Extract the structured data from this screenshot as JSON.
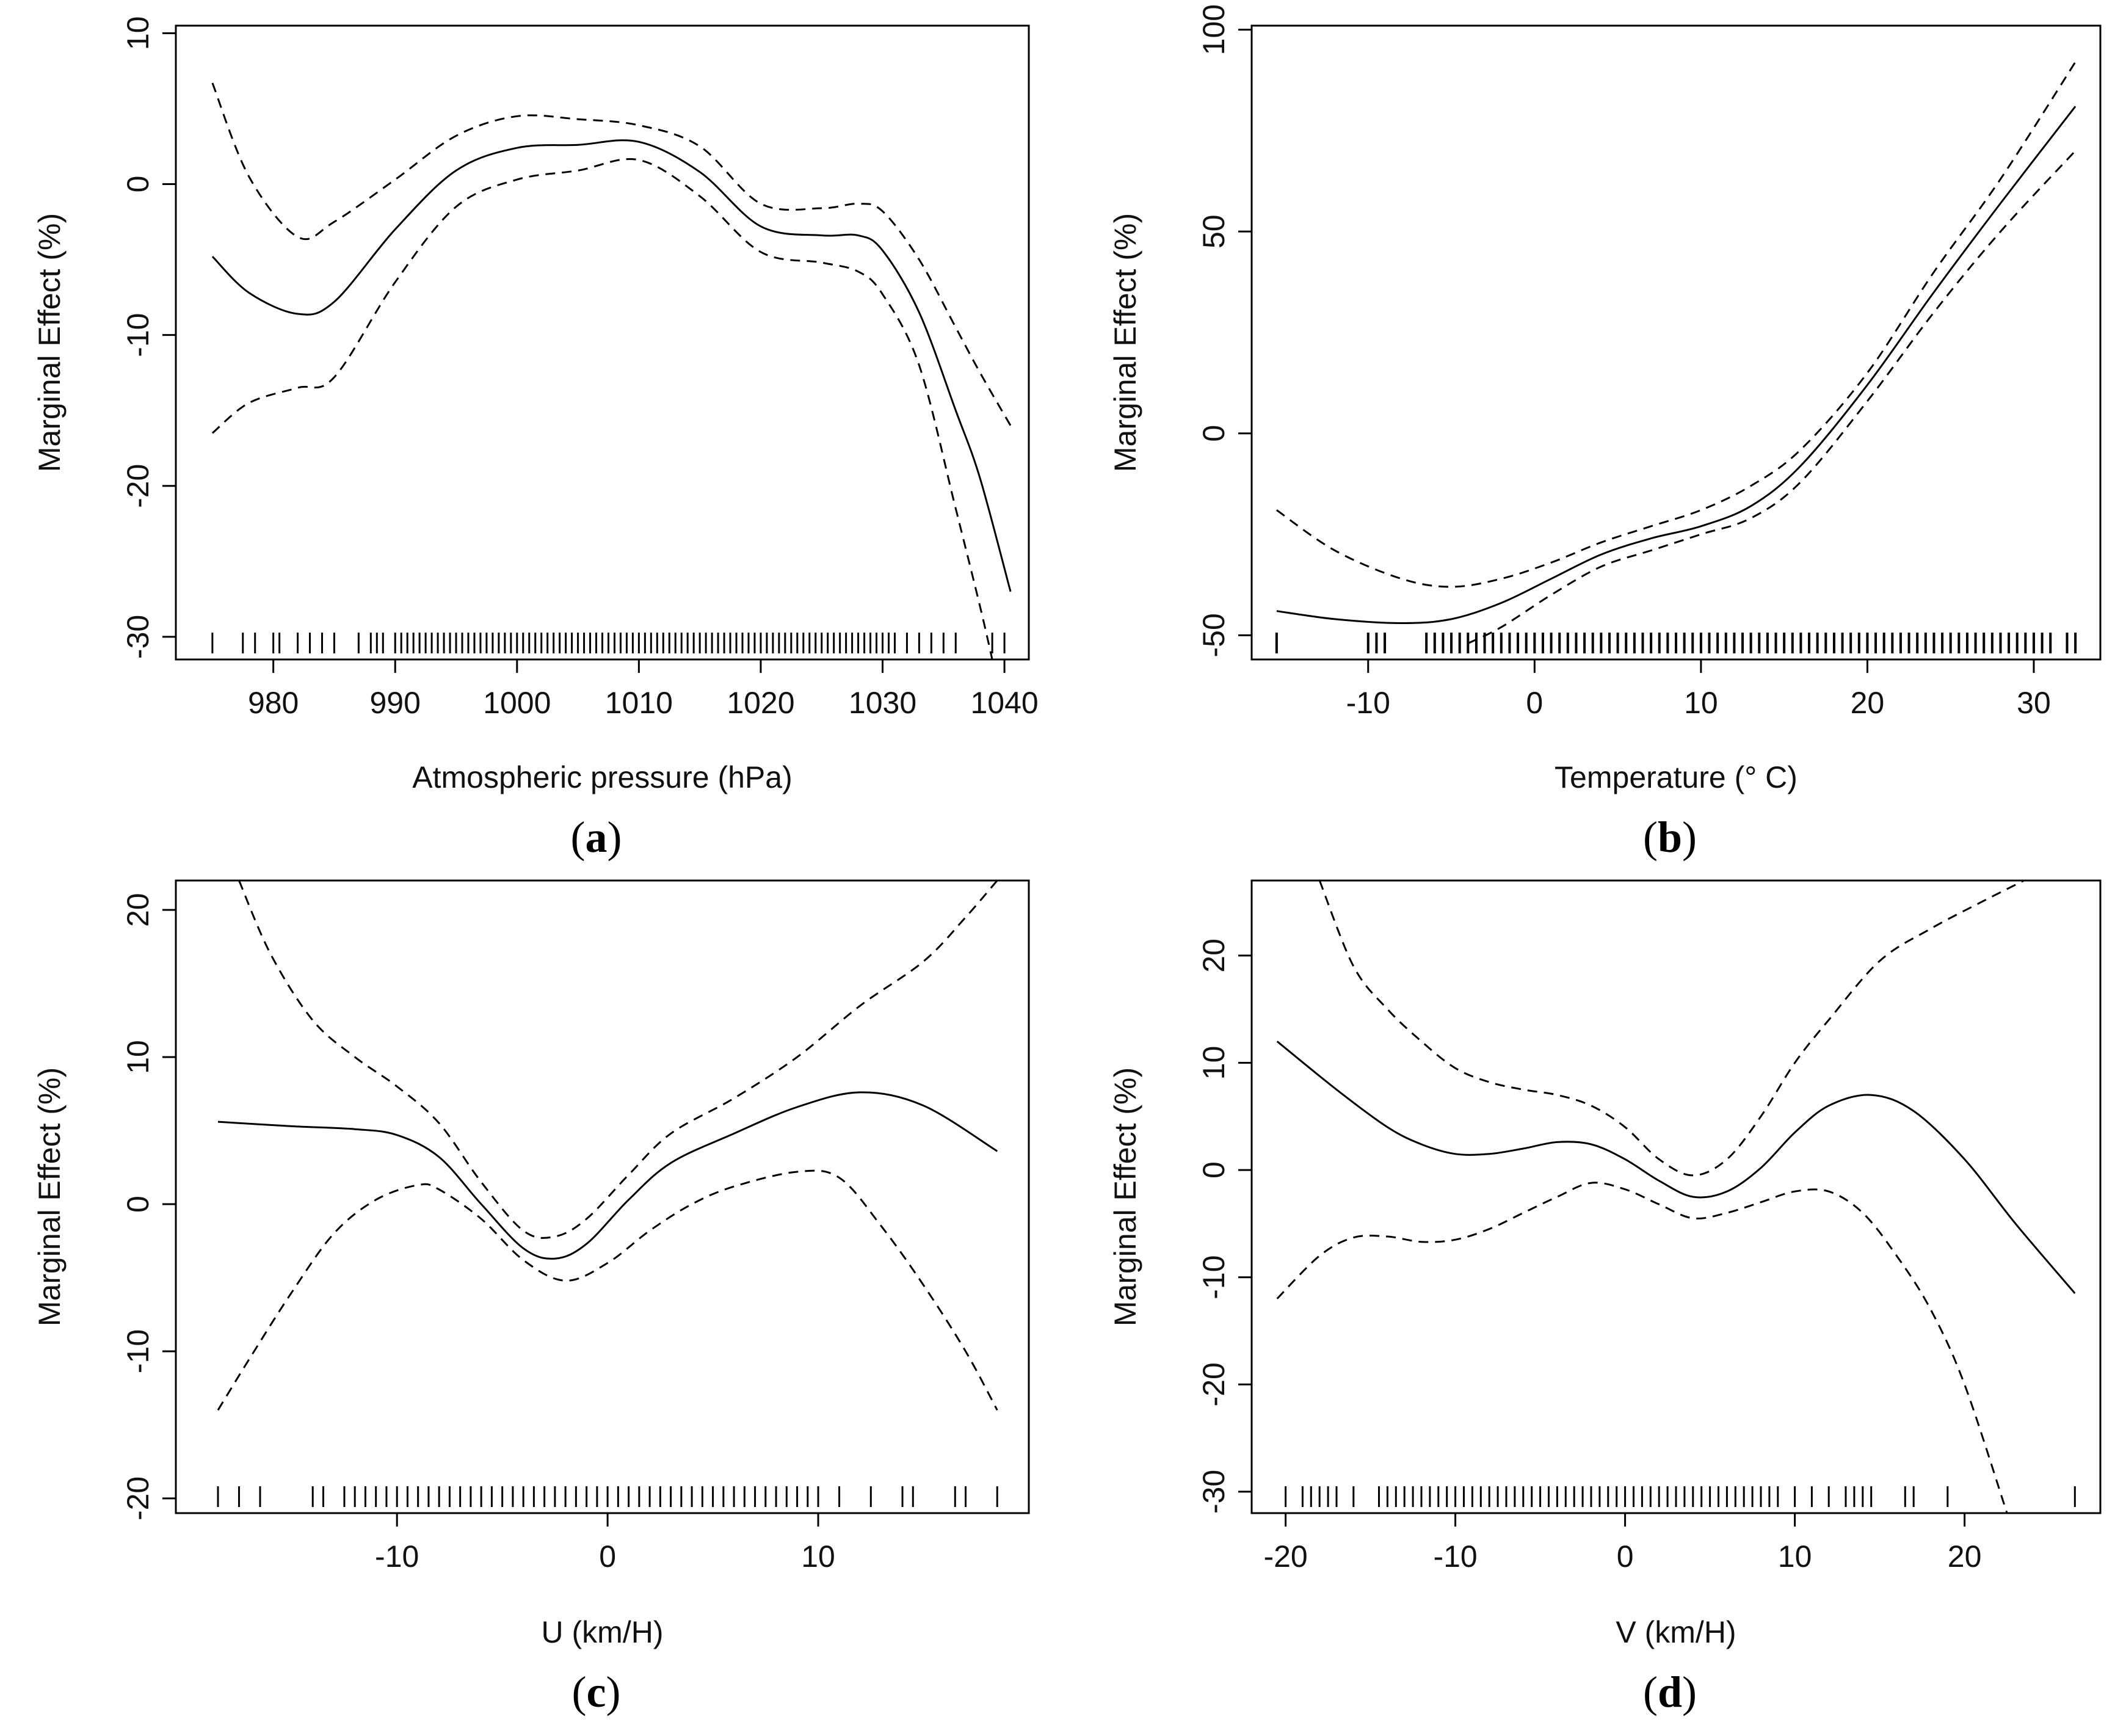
{
  "figure": {
    "colors": {
      "line": "#000000",
      "background": "#ffffff"
    }
  },
  "chart_data": [
    {
      "type": "line",
      "panel_label": "a",
      "xlabel": "Atmospheric pressure (hPa)",
      "ylabel": "Marginal Effect (%)",
      "xlim": [
        972,
        1042
      ],
      "ylim": [
        -31.5,
        10.5
      ],
      "xticks": [
        980,
        990,
        1000,
        1010,
        1020,
        1030,
        1040
      ],
      "xtick_labels": [
        "980",
        "990",
        "1000",
        "1010",
        "1020",
        "1030",
        "1040"
      ],
      "yticks": [
        -30,
        -20,
        -10,
        0,
        10
      ],
      "ytick_labels": [
        "-30",
        "-20",
        "-10",
        "0",
        "10"
      ],
      "series": [
        {
          "name": "estimate",
          "style": "solid",
          "x": [
            975,
            978,
            982,
            985,
            990,
            995,
            1000,
            1005,
            1010,
            1015,
            1020,
            1025,
            1028,
            1030,
            1033,
            1036,
            1038,
            1040.5
          ],
          "y": [
            -4.8,
            -7.2,
            -8.6,
            -7.8,
            -3.0,
            0.9,
            2.4,
            2.6,
            2.8,
            0.8,
            -2.8,
            -3.4,
            -3.4,
            -4.4,
            -8.5,
            -15.0,
            -19.5,
            -27.0
          ]
        },
        {
          "name": "upper 95% CI",
          "style": "dashed",
          "x": [
            975,
            978,
            982,
            985,
            990,
            995,
            1000,
            1005,
            1010,
            1015,
            1020,
            1025,
            1028,
            1030,
            1033,
            1036,
            1038,
            1040.5
          ],
          "y": [
            6.7,
            0.5,
            -3.5,
            -2.5,
            0.3,
            3.2,
            4.5,
            4.3,
            3.9,
            2.5,
            -1.3,
            -1.6,
            -1.3,
            -1.8,
            -5.0,
            -9.5,
            -12.5,
            -16.0
          ]
        },
        {
          "name": "lower 95% CI",
          "style": "dashed",
          "x": [
            975,
            978,
            982,
            985,
            990,
            995,
            1000,
            1005,
            1010,
            1015,
            1020,
            1025,
            1028,
            1030,
            1033,
            1036,
            1038,
            1039
          ],
          "y": [
            -16.5,
            -14.5,
            -13.5,
            -12.8,
            -6.5,
            -1.5,
            0.3,
            0.9,
            1.6,
            -0.8,
            -4.5,
            -5.2,
            -5.8,
            -7.3,
            -12.0,
            -21.5,
            -28.0,
            -31.5
          ]
        }
      ],
      "rug": [
        975,
        977.5,
        978.5,
        980,
        980.5,
        982,
        983,
        984,
        985,
        987,
        988,
        988.5,
        989,
        990,
        990.5,
        991,
        991.5,
        992,
        992.5,
        993,
        993.5,
        994,
        994.5,
        995,
        995.5,
        996,
        996.5,
        997,
        997.5,
        998,
        998.5,
        999,
        999.5,
        1000,
        1000.5,
        1001,
        1001.5,
        1002,
        1002.5,
        1003,
        1003.5,
        1004,
        1004.5,
        1005,
        1005.5,
        1006,
        1006.5,
        1007,
        1007.5,
        1008,
        1008.5,
        1009,
        1009.5,
        1010,
        1010.5,
        1011,
        1011.5,
        1012,
        1012.5,
        1013,
        1013.5,
        1014,
        1014.5,
        1015,
        1015.5,
        1016,
        1016.5,
        1017,
        1017.5,
        1018,
        1018.5,
        1019,
        1019.5,
        1020,
        1020.5,
        1021,
        1021.5,
        1022,
        1022.5,
        1023,
        1023.5,
        1024,
        1024.5,
        1025,
        1025.5,
        1026,
        1026.5,
        1027,
        1027.5,
        1028,
        1028.5,
        1029,
        1029.5,
        1030,
        1030.5,
        1031,
        1032,
        1033,
        1034,
        1035,
        1036,
        1039,
        1040
      ]
    },
    {
      "type": "line",
      "panel_label": "b",
      "xlabel": "Temperature (° C)",
      "ylabel": "Marginal Effect (%)",
      "xlim": [
        -17,
        34
      ],
      "ylim": [
        -56,
        101
      ],
      "xticks": [
        -10,
        0,
        10,
        20,
        30
      ],
      "xtick_labels": [
        "-10",
        "0",
        "10",
        "20",
        "30"
      ],
      "yticks": [
        -50,
        0,
        50,
        100
      ],
      "ytick_labels": [
        "-50",
        "0",
        "50",
        "100"
      ],
      "series": [
        {
          "name": "estimate",
          "style": "solid",
          "x": [
            -15.5,
            -12,
            -8,
            -5,
            -2,
            1,
            4,
            7,
            10,
            13,
            16,
            20,
            24,
            28,
            32.5
          ],
          "y": [
            -44,
            -46,
            -47,
            -46,
            -42,
            -36,
            -30,
            -26,
            -23,
            -18,
            -8,
            12,
            35,
            57,
            81
          ]
        },
        {
          "name": "upper 95% CI",
          "style": "dashed",
          "x": [
            -15.5,
            -12,
            -8,
            -5,
            -2,
            1,
            4,
            7,
            10,
            13,
            16,
            20,
            24,
            28,
            32.5
          ],
          "y": [
            -19,
            -29,
            -36,
            -38,
            -36,
            -32,
            -27,
            -23,
            -19,
            -13,
            -4,
            15,
            40,
            63,
            92
          ]
        },
        {
          "name": "lower 95% CI",
          "style": "dashed",
          "x": [
            -4,
            -2,
            1,
            4,
            7,
            10,
            13,
            16,
            20,
            24,
            28,
            32.5
          ],
          "y": [
            -52,
            -48,
            -40,
            -33,
            -29,
            -25,
            -21,
            -12,
            8,
            30,
            50,
            70
          ]
        }
      ],
      "rug": [
        -15.5,
        -10,
        -9.5,
        -9,
        -6.5,
        -6,
        -5.5,
        -5,
        -4.5,
        -4,
        -3.5,
        -3,
        -2.5,
        -2,
        -1.5,
        -1,
        -0.5,
        0,
        0.5,
        1,
        1.5,
        2,
        2.5,
        3,
        3.5,
        4,
        4.5,
        5,
        5.5,
        6,
        6.5,
        7,
        7.5,
        8,
        8.5,
        9,
        9.5,
        10,
        10.5,
        11,
        11.5,
        12,
        12.5,
        13,
        13.5,
        14,
        14.5,
        15,
        15.5,
        16,
        16.5,
        17,
        17.5,
        18,
        18.5,
        19,
        19.5,
        20,
        20.5,
        21,
        21.5,
        22,
        22.5,
        23,
        23.5,
        24,
        24.5,
        25,
        25.5,
        26,
        26.5,
        27,
        27.5,
        28,
        28.5,
        29,
        29.5,
        30,
        30.5,
        31,
        32,
        32.5
      ]
    },
    {
      "type": "line",
      "panel_label": "c",
      "xlabel": "U (km/H)",
      "ylabel": "Marginal Effect (%)",
      "xlim": [
        -20.5,
        20
      ],
      "ylim": [
        -21,
        22
      ],
      "xticks": [
        -10,
        0,
        10
      ],
      "xtick_labels": [
        "-10",
        "0",
        "10"
      ],
      "yticks": [
        -20,
        -10,
        0,
        10,
        20
      ],
      "ytick_labels": [
        "-20",
        "-10",
        "0",
        "10",
        "20"
      ],
      "series": [
        {
          "name": "estimate",
          "style": "solid",
          "x": [
            -18.5,
            -15,
            -12,
            -10,
            -8,
            -6,
            -4,
            -2.5,
            -1,
            1,
            3,
            6,
            9,
            12,
            15,
            18.5
          ],
          "y": [
            5.6,
            5.3,
            5.1,
            4.7,
            3.2,
            0.0,
            -3.0,
            -3.7,
            -2.7,
            0.3,
            2.8,
            4.8,
            6.6,
            7.6,
            6.7,
            3.6
          ]
        },
        {
          "name": "upper 95% CI",
          "style": "dashed",
          "x": [
            -17.5,
            -16,
            -14,
            -12,
            -10,
            -8,
            -6,
            -4,
            -2.5,
            -1,
            1,
            3,
            6,
            9,
            12,
            15,
            17,
            18.5
          ],
          "y": [
            22,
            17,
            12.5,
            10,
            8.0,
            5.5,
            1.5,
            -1.8,
            -2.2,
            -1.0,
            2.0,
            4.8,
            7.2,
            10.0,
            13.5,
            16.5,
            19.5,
            22
          ]
        },
        {
          "name": "lower 95% CI",
          "style": "dashed",
          "x": [
            -18.5,
            -17,
            -15,
            -13,
            -11,
            -9,
            -8,
            -6,
            -4,
            -2,
            0,
            2,
            4,
            6,
            9,
            11,
            13,
            15,
            17,
            18.5
          ],
          "y": [
            -14,
            -10.5,
            -6,
            -2,
            0.3,
            1.3,
            1.0,
            -1.0,
            -3.8,
            -5.2,
            -4.0,
            -1.8,
            0.0,
            1.2,
            2.2,
            1.8,
            -1.5,
            -5.5,
            -10,
            -14
          ]
        }
      ],
      "rug": [
        -18.5,
        -17.5,
        -16.5,
        -14,
        -13.5,
        -12.5,
        -12,
        -11.5,
        -11,
        -10.5,
        -10,
        -9.5,
        -9,
        -8.5,
        -8,
        -7.5,
        -7,
        -6.5,
        -6,
        -5.5,
        -5,
        -4.5,
        -4,
        -3.5,
        -3,
        -2.5,
        -2,
        -1.5,
        -1,
        -0.5,
        0,
        0.5,
        1,
        1.5,
        2,
        2.5,
        3,
        3.5,
        4,
        4.5,
        5,
        5.5,
        6,
        6.5,
        7,
        7.5,
        8,
        8.5,
        9,
        9.5,
        10,
        11,
        12.5,
        14,
        14.5,
        16.5,
        17,
        18.5
      ]
    },
    {
      "type": "line",
      "panel_label": "d",
      "xlabel": "V (km/H)",
      "ylabel": "Marginal Effect (%)",
      "xlim": [
        -22,
        28
      ],
      "ylim": [
        -32,
        27
      ],
      "xticks": [
        -20,
        -10,
        0,
        10,
        20
      ],
      "xtick_labels": [
        "-20",
        "-10",
        "0",
        "10",
        "20"
      ],
      "yticks": [
        -30,
        -20,
        -10,
        0,
        10,
        20
      ],
      "ytick_labels": [
        "-30",
        "-20",
        "-10",
        "0",
        "10",
        "20"
      ],
      "series": [
        {
          "name": "estimate",
          "style": "solid",
          "x": [
            -20.5,
            -17,
            -14,
            -12,
            -10,
            -8,
            -6,
            -4,
            -2,
            0,
            2,
            4,
            6,
            8,
            10,
            12,
            14.5,
            17,
            20,
            23,
            26.5
          ],
          "y": [
            12,
            7.5,
            4.0,
            2.4,
            1.5,
            1.5,
            2.0,
            2.6,
            2.4,
            1.0,
            -1.0,
            -2.5,
            -2.0,
            0.2,
            3.5,
            6.0,
            7.0,
            5.5,
            1.0,
            -5.0,
            -11.5
          ]
        },
        {
          "name": "upper 95% CI",
          "style": "dashed",
          "x": [
            -18,
            -16,
            -14,
            -12,
            -10,
            -8,
            -6,
            -4,
            -2,
            0,
            2,
            4,
            6,
            8,
            10,
            12,
            15,
            18,
            21,
            23.5
          ],
          "y": [
            27,
            19,
            15,
            12,
            9.5,
            8.2,
            7.5,
            7.0,
            6.0,
            4.0,
            1.0,
            -0.5,
            1.0,
            5.0,
            10.0,
            14.0,
            19.5,
            22.5,
            25,
            27
          ]
        },
        {
          "name": "lower 95% CI",
          "style": "dashed",
          "x": [
            -20.5,
            -18,
            -16,
            -14,
            -12,
            -10,
            -8,
            -6,
            -4,
            -2,
            0,
            2,
            4,
            6,
            8,
            10,
            12,
            14,
            16,
            18,
            20,
            22.5
          ],
          "y": [
            -12,
            -8.0,
            -6.3,
            -6.2,
            -6.7,
            -6.5,
            -5.5,
            -4.0,
            -2.5,
            -1.2,
            -1.8,
            -3.2,
            -4.5,
            -4.0,
            -3.0,
            -2.0,
            -2.0,
            -4.0,
            -8.0,
            -13.0,
            -20.0,
            -32
          ]
        }
      ],
      "rug": [
        -20,
        -19,
        -18.5,
        -18,
        -17.5,
        -17,
        -16,
        -14.5,
        -14,
        -13.5,
        -13,
        -12.5,
        -12,
        -11.5,
        -11,
        -10.5,
        -10,
        -9.5,
        -9,
        -8.5,
        -8,
        -7.5,
        -7,
        -6.5,
        -6,
        -5.5,
        -5,
        -4.5,
        -4,
        -3.5,
        -3,
        -2.5,
        -2,
        -1.5,
        -1,
        -0.5,
        0,
        0.5,
        1,
        1.5,
        2,
        2.5,
        3,
        3.5,
        4,
        4.5,
        5,
        5.5,
        6,
        6.5,
        7,
        7.5,
        8,
        8.5,
        9,
        10,
        11,
        12,
        13,
        13.5,
        14,
        14.5,
        16.5,
        17,
        19,
        26.5
      ]
    }
  ]
}
